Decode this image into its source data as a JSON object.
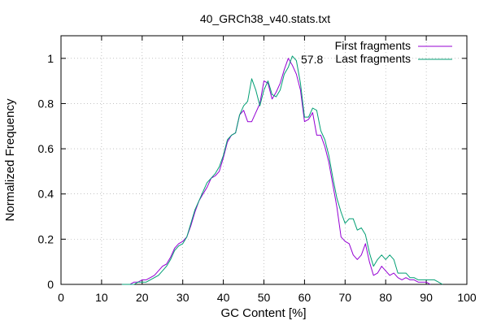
{
  "chart_data": {
    "type": "line",
    "title": "40_GRCh38_v40.stats.txt",
    "xlabel": "GC Content [%]",
    "ylabel": "Normalized Frequency",
    "xlim": [
      0,
      100
    ],
    "ylim": [
      0,
      1.1
    ],
    "xticks": [
      0,
      10,
      20,
      30,
      40,
      50,
      60,
      70,
      80,
      90,
      100
    ],
    "yticks": [
      0,
      0.2,
      0.4,
      0.6,
      0.8,
      1
    ],
    "ytick_labels": [
      "0",
      "0.2",
      "0.4",
      "0.6",
      "0.8",
      "1"
    ],
    "grid": true,
    "legend_position": "top-right",
    "annotation": {
      "text": "57.8",
      "x": 57.8,
      "y": 1.0
    },
    "series": [
      {
        "name": "First fragments",
        "color": "#9400d3",
        "x": [
          15,
          16,
          17,
          18,
          19,
          20,
          21,
          22,
          23,
          24,
          25,
          26,
          27,
          28,
          29,
          30,
          31,
          32,
          33,
          34,
          35,
          36,
          37,
          38,
          39,
          40,
          41,
          42,
          43,
          44,
          45,
          46,
          47,
          48,
          49,
          50,
          51,
          52,
          53,
          54,
          55,
          56,
          57,
          58,
          59,
          60,
          61,
          62,
          63,
          64,
          65,
          66,
          67,
          68,
          69,
          70,
          71,
          72,
          73,
          74,
          75,
          76,
          77,
          78,
          79,
          80,
          81,
          82,
          83,
          84,
          85,
          86,
          87,
          88,
          89,
          90,
          91
        ],
        "y": [
          0.0,
          0.0,
          0.0,
          0.01,
          0.01,
          0.02,
          0.02,
          0.03,
          0.04,
          0.06,
          0.08,
          0.09,
          0.12,
          0.16,
          0.18,
          0.19,
          0.21,
          0.26,
          0.32,
          0.37,
          0.4,
          0.43,
          0.47,
          0.48,
          0.5,
          0.56,
          0.63,
          0.66,
          0.67,
          0.75,
          0.77,
          0.72,
          0.72,
          0.76,
          0.8,
          0.9,
          0.89,
          0.82,
          0.85,
          0.89,
          0.95,
          1.0,
          0.97,
          0.93,
          0.86,
          0.72,
          0.73,
          0.76,
          0.66,
          0.66,
          0.61,
          0.54,
          0.44,
          0.34,
          0.21,
          0.19,
          0.18,
          0.13,
          0.11,
          0.13,
          0.18,
          0.1,
          0.04,
          0.05,
          0.08,
          0.06,
          0.04,
          0.05,
          0.03,
          0.02,
          0.03,
          0.02,
          0.02,
          0.01,
          0.01,
          0.01,
          0.0
        ]
      },
      {
        "name": "Last fragments",
        "color": "#009e73",
        "x": [
          15,
          16,
          17,
          18,
          19,
          20,
          21,
          22,
          23,
          24,
          25,
          26,
          27,
          28,
          29,
          30,
          31,
          32,
          33,
          34,
          35,
          36,
          37,
          38,
          39,
          40,
          41,
          42,
          43,
          44,
          45,
          46,
          47,
          48,
          49,
          50,
          51,
          52,
          53,
          54,
          55,
          56,
          57,
          58,
          59,
          60,
          61,
          62,
          63,
          64,
          65,
          66,
          67,
          68,
          69,
          70,
          71,
          72,
          73,
          74,
          75,
          76,
          77,
          78,
          79,
          80,
          81,
          82,
          83,
          84,
          85,
          86,
          87,
          88,
          89,
          90,
          91,
          92,
          93,
          94
        ],
        "y": [
          0.0,
          0.0,
          0.0,
          0.0,
          0.01,
          0.01,
          0.01,
          0.02,
          0.03,
          0.04,
          0.06,
          0.08,
          0.11,
          0.15,
          0.17,
          0.18,
          0.21,
          0.27,
          0.33,
          0.37,
          0.41,
          0.45,
          0.47,
          0.49,
          0.52,
          0.57,
          0.64,
          0.66,
          0.67,
          0.75,
          0.79,
          0.81,
          0.91,
          0.86,
          0.79,
          0.86,
          0.9,
          0.84,
          0.83,
          0.86,
          0.93,
          0.96,
          1.01,
          0.99,
          0.89,
          0.74,
          0.74,
          0.78,
          0.77,
          0.68,
          0.64,
          0.57,
          0.47,
          0.38,
          0.32,
          0.27,
          0.29,
          0.29,
          0.24,
          0.25,
          0.22,
          0.14,
          0.08,
          0.11,
          0.13,
          0.11,
          0.13,
          0.11,
          0.05,
          0.05,
          0.05,
          0.03,
          0.03,
          0.02,
          0.02,
          0.02,
          0.02,
          0.02,
          0.01,
          0.0
        ]
      }
    ]
  }
}
